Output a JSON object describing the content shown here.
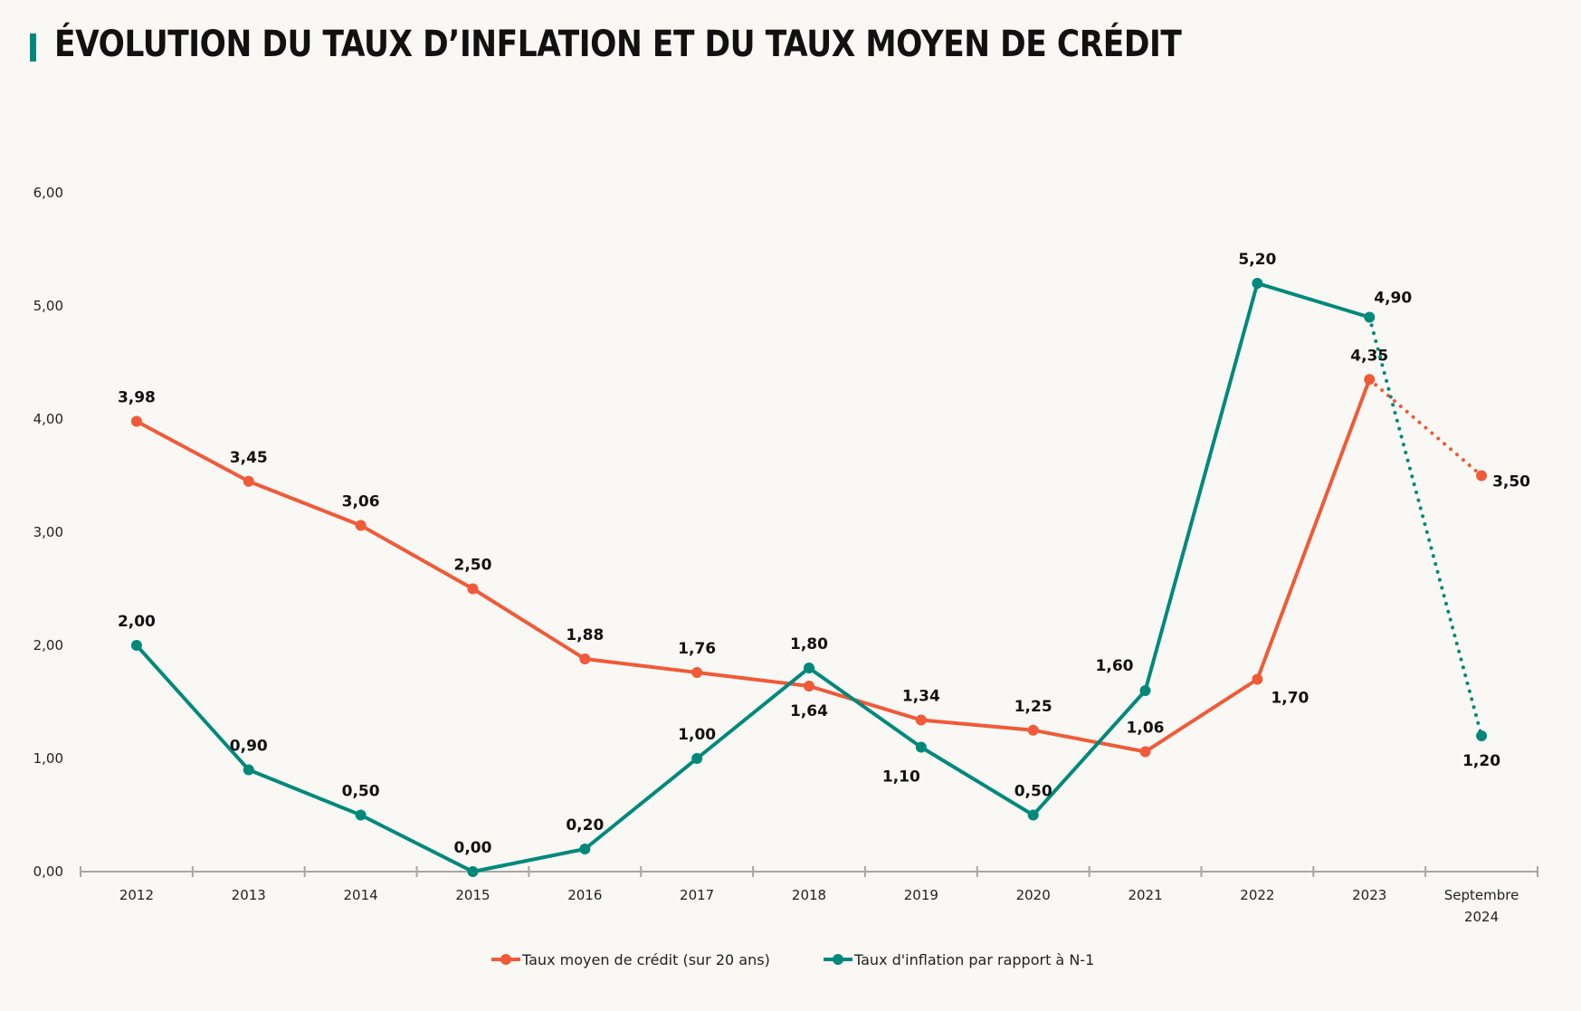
{
  "header": {
    "title": "ÉVOLUTION DU TAUX D’INFLATION ET DU TAUX MOYEN DE CRÉDIT",
    "accent_color": "#00897B"
  },
  "chart_data": {
    "type": "line",
    "title": "ÉVOLUTION DU TAUX D’INFLATION ET DU TAUX MOYEN DE CRÉDIT",
    "xlabel": "",
    "ylabel": "",
    "categories": [
      "2012",
      "2013",
      "2014",
      "2015",
      "2016",
      "2017",
      "2018",
      "2019",
      "2020",
      "2021",
      "2022",
      "2023",
      "Septembre 2024"
    ],
    "category_lines": [
      [
        "2012"
      ],
      [
        "2013"
      ],
      [
        "2014"
      ],
      [
        "2015"
      ],
      [
        "2016"
      ],
      [
        "2017"
      ],
      [
        "2018"
      ],
      [
        "2019"
      ],
      [
        "2020"
      ],
      [
        "2021"
      ],
      [
        "2022"
      ],
      [
        "2023"
      ],
      [
        "Septembre",
        "2024"
      ]
    ],
    "ylim": [
      0,
      6
    ],
    "yticks": [
      0,
      1,
      2,
      3,
      4,
      5,
      6
    ],
    "ytick_labels": [
      "0,00",
      "1,00",
      "2,00",
      "3,00",
      "4,00",
      "5,00",
      "6,00"
    ],
    "grid": false,
    "legend_position": "bottom",
    "series": [
      {
        "name": "Taux moyen de crédit (sur 20 ans)",
        "color": "#F05A38",
        "values": [
          3.98,
          3.45,
          3.06,
          2.5,
          1.88,
          1.76,
          1.64,
          1.34,
          1.25,
          1.06,
          1.7,
          4.35,
          3.5
        ],
        "labels": [
          "3,98",
          "3,45",
          "3,06",
          "2,50",
          "1,88",
          "1,76",
          "1,64",
          "1,34",
          "1,25",
          "1,06",
          "1,70",
          "4,35",
          "3,50"
        ],
        "label_placement": [
          "above",
          "above",
          "above",
          "above",
          "above",
          "above",
          "below",
          "above",
          "above",
          "above",
          "below-right",
          "above",
          "right"
        ],
        "dotted_last_segment": true
      },
      {
        "name": "Taux d'inflation par rapport à N-1",
        "color": "#00897B",
        "values": [
          2.0,
          0.9,
          0.5,
          0.0,
          0.2,
          1.0,
          1.8,
          1.1,
          0.5,
          1.6,
          5.2,
          4.9,
          1.2
        ],
        "labels": [
          "2,00",
          "0,90",
          "0,50",
          "0,00",
          "0,20",
          "1,00",
          "1,80",
          "1,10",
          "0,50",
          "1,60",
          "5,20",
          "4,90",
          "1,20"
        ],
        "label_placement": [
          "above",
          "above",
          "above",
          "above",
          "above",
          "above",
          "above",
          "below-left",
          "above",
          "above-left",
          "above",
          "above-right",
          "below"
        ],
        "dotted_last_segment": true
      }
    ]
  }
}
